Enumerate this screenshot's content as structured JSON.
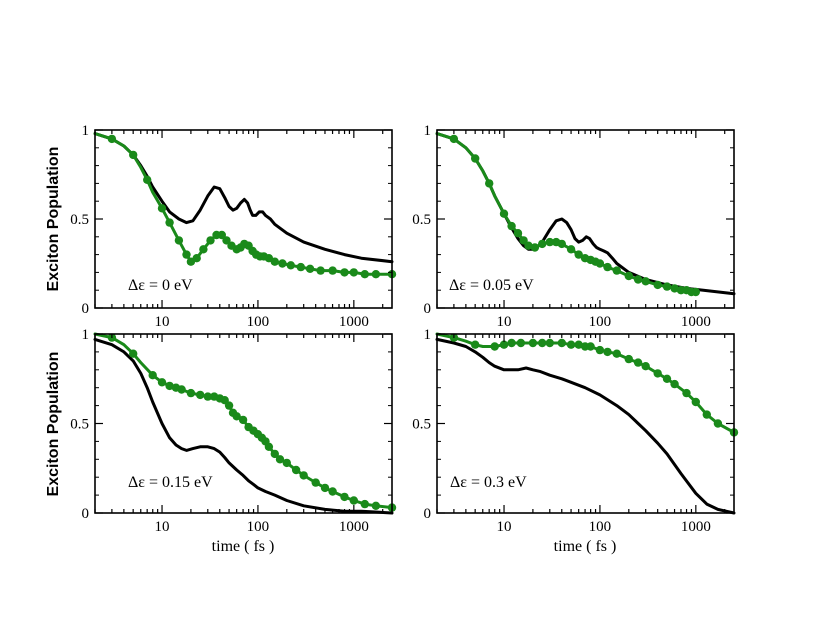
{
  "colors": {
    "sim": "#000000",
    "fit": "#1a8a1a",
    "frame": "#000000",
    "background": "#ffffff"
  },
  "chart_data": [
    {
      "type": "line",
      "xscale": "log",
      "xlim": [
        2,
        2500
      ],
      "ylim": [
        0,
        1
      ],
      "xticks": [
        10,
        100,
        1000
      ],
      "xtick_labels": [
        "10",
        "100",
        "1000"
      ],
      "yticks": [
        0,
        0.5,
        1
      ],
      "ytick_labels": [
        "0",
        "0.5",
        "1"
      ],
      "xlabel": "",
      "ylabel": "Exciton Population",
      "annotation": "Δε = 0 eV",
      "series": [
        {
          "name": "black",
          "color": "#000000",
          "markers": false,
          "x": [
            2,
            3,
            4,
            5,
            6,
            7,
            8,
            10,
            12,
            15,
            18,
            21,
            25,
            30,
            35,
            40,
            45,
            50,
            55,
            60,
            66,
            72,
            78,
            83,
            88,
            95,
            103,
            112,
            120,
            135,
            150,
            200,
            300,
            500,
            800,
            1200,
            2500
          ],
          "y": [
            0.98,
            0.95,
            0.91,
            0.86,
            0.8,
            0.74,
            0.68,
            0.6,
            0.54,
            0.5,
            0.48,
            0.49,
            0.55,
            0.63,
            0.68,
            0.67,
            0.62,
            0.57,
            0.55,
            0.56,
            0.59,
            0.61,
            0.59,
            0.55,
            0.52,
            0.52,
            0.54,
            0.54,
            0.52,
            0.5,
            0.47,
            0.42,
            0.37,
            0.33,
            0.3,
            0.28,
            0.26
          ]
        },
        {
          "name": "green",
          "color": "#1a8a1a",
          "markers": true,
          "x": [
            2,
            3,
            4,
            5,
            6,
            7,
            8,
            10,
            12,
            15,
            18,
            20,
            23,
            27,
            32,
            37,
            42,
            47,
            53,
            60,
            66,
            72,
            80,
            88,
            96,
            105,
            115,
            130,
            150,
            180,
            220,
            280,
            350,
            450,
            600,
            800,
            1000,
            1300,
            1700,
            2500
          ],
          "y": [
            0.98,
            0.95,
            0.91,
            0.86,
            0.79,
            0.72,
            0.65,
            0.56,
            0.48,
            0.38,
            0.3,
            0.26,
            0.28,
            0.33,
            0.38,
            0.41,
            0.41,
            0.38,
            0.35,
            0.33,
            0.34,
            0.36,
            0.35,
            0.32,
            0.3,
            0.29,
            0.29,
            0.28,
            0.26,
            0.25,
            0.24,
            0.23,
            0.22,
            0.21,
            0.21,
            0.2,
            0.2,
            0.19,
            0.19,
            0.19
          ]
        }
      ]
    },
    {
      "type": "line",
      "xscale": "log",
      "xlim": [
        2,
        2500
      ],
      "ylim": [
        0,
        1
      ],
      "xticks": [
        10,
        100,
        1000
      ],
      "xtick_labels": [
        "10",
        "100",
        "1000"
      ],
      "yticks": [
        0,
        0.5,
        1
      ],
      "ytick_labels": [
        "0",
        "0.5",
        "1"
      ],
      "xlabel": "",
      "ylabel": "",
      "annotation": "Δε = 0.05 eV",
      "series": [
        {
          "name": "black",
          "color": "#000000",
          "markers": false,
          "x": [
            2,
            3,
            4,
            5,
            6,
            7,
            8,
            10,
            12,
            14,
            16,
            18,
            21,
            25,
            30,
            35,
            40,
            45,
            50,
            55,
            60,
            66,
            72,
            78,
            85,
            92,
            100,
            110,
            120,
            135,
            150,
            200,
            300,
            500,
            800,
            1200,
            2500
          ],
          "y": [
            0.98,
            0.95,
            0.9,
            0.84,
            0.77,
            0.7,
            0.63,
            0.53,
            0.45,
            0.39,
            0.35,
            0.33,
            0.33,
            0.37,
            0.44,
            0.49,
            0.5,
            0.48,
            0.44,
            0.39,
            0.37,
            0.38,
            0.4,
            0.39,
            0.36,
            0.34,
            0.33,
            0.32,
            0.31,
            0.28,
            0.25,
            0.2,
            0.16,
            0.13,
            0.11,
            0.1,
            0.08
          ]
        },
        {
          "name": "green",
          "color": "#1a8a1a",
          "markers": true,
          "x": [
            2,
            3,
            4,
            5,
            6,
            7,
            8,
            10,
            12,
            14,
            16,
            18,
            21,
            25,
            30,
            35,
            40,
            50,
            60,
            70,
            80,
            90,
            100,
            120,
            150,
            200,
            250,
            300,
            400,
            500,
            600,
            700,
            800,
            900,
            1000
          ],
          "y": [
            0.98,
            0.95,
            0.9,
            0.84,
            0.77,
            0.7,
            0.63,
            0.53,
            0.46,
            0.42,
            0.38,
            0.35,
            0.34,
            0.36,
            0.37,
            0.37,
            0.36,
            0.33,
            0.3,
            0.28,
            0.27,
            0.26,
            0.25,
            0.23,
            0.21,
            0.18,
            0.16,
            0.15,
            0.13,
            0.12,
            0.11,
            0.1,
            0.1,
            0.09,
            0.09
          ]
        }
      ]
    },
    {
      "type": "line",
      "xscale": "log",
      "xlim": [
        2,
        2500
      ],
      "ylim": [
        0,
        1
      ],
      "xticks": [
        10,
        100,
        1000
      ],
      "xtick_labels": [
        "10",
        "100",
        "1000"
      ],
      "yticks": [
        0,
        0.5,
        1
      ],
      "ytick_labels": [
        "0",
        "0.5",
        "1"
      ],
      "xlabel": "time ( fs )",
      "ylabel": "Exciton Population",
      "annotation": "Δε = 0.15 eV",
      "series": [
        {
          "name": "black",
          "color": "#000000",
          "markers": false,
          "x": [
            2,
            3,
            4,
            5,
            6,
            7,
            8,
            10,
            12,
            14,
            16,
            18,
            21,
            25,
            30,
            35,
            40,
            45,
            50,
            60,
            70,
            80,
            90,
            100,
            120,
            150,
            200,
            300,
            500,
            800,
            1200,
            2500
          ],
          "y": [
            0.97,
            0.94,
            0.9,
            0.85,
            0.78,
            0.7,
            0.62,
            0.5,
            0.42,
            0.38,
            0.36,
            0.35,
            0.36,
            0.37,
            0.37,
            0.36,
            0.34,
            0.31,
            0.28,
            0.24,
            0.21,
            0.18,
            0.16,
            0.14,
            0.12,
            0.1,
            0.07,
            0.04,
            0.02,
            0.01,
            0.01,
            0.0
          ]
        },
        {
          "name": "green",
          "color": "#1a8a1a",
          "markers": true,
          "x": [
            2,
            3,
            4,
            5,
            6,
            8,
            10,
            12,
            14,
            16,
            20,
            25,
            30,
            35,
            40,
            45,
            50,
            55,
            60,
            70,
            80,
            90,
            100,
            110,
            120,
            130,
            150,
            170,
            200,
            250,
            300,
            400,
            500,
            600,
            800,
            1000,
            1300,
            1700,
            2500
          ],
          "y": [
            1.0,
            0.98,
            0.94,
            0.89,
            0.84,
            0.77,
            0.73,
            0.71,
            0.7,
            0.69,
            0.67,
            0.66,
            0.65,
            0.65,
            0.64,
            0.63,
            0.6,
            0.56,
            0.54,
            0.52,
            0.48,
            0.46,
            0.44,
            0.42,
            0.4,
            0.37,
            0.33,
            0.3,
            0.28,
            0.24,
            0.21,
            0.17,
            0.14,
            0.12,
            0.09,
            0.07,
            0.05,
            0.04,
            0.03
          ]
        }
      ]
    },
    {
      "type": "line",
      "xscale": "log",
      "xlim": [
        2,
        2500
      ],
      "ylim": [
        0,
        1
      ],
      "xticks": [
        10,
        100,
        1000
      ],
      "xtick_labels": [
        "10",
        "100",
        "1000"
      ],
      "yticks": [
        0,
        0.5,
        1
      ],
      "ytick_labels": [
        "0",
        "0.5",
        "1"
      ],
      "xlabel": "time ( fs )",
      "ylabel": "",
      "annotation": "Δε = 0.3 eV",
      "series": [
        {
          "name": "black",
          "color": "#000000",
          "markers": false,
          "x": [
            2,
            3,
            4,
            5,
            6,
            7,
            8,
            10,
            12,
            14,
            17,
            20,
            24,
            30,
            40,
            50,
            70,
            100,
            150,
            200,
            300,
            400,
            500,
            700,
            1000,
            1300,
            1700,
            2500
          ],
          "y": [
            0.97,
            0.95,
            0.93,
            0.9,
            0.87,
            0.84,
            0.82,
            0.8,
            0.8,
            0.8,
            0.81,
            0.8,
            0.79,
            0.77,
            0.75,
            0.73,
            0.7,
            0.66,
            0.6,
            0.55,
            0.46,
            0.39,
            0.33,
            0.22,
            0.11,
            0.05,
            0.02,
            0.0
          ]
        },
        {
          "name": "green",
          "color": "#1a8a1a",
          "markers": true,
          "x": [
            2,
            3,
            4,
            5,
            6,
            8,
            10,
            12,
            15,
            20,
            25,
            30,
            40,
            50,
            60,
            70,
            80,
            100,
            120,
            150,
            200,
            250,
            300,
            400,
            500,
            600,
            800,
            1000,
            1300,
            1700,
            2500
          ],
          "y": [
            1.0,
            0.98,
            0.96,
            0.94,
            0.93,
            0.93,
            0.94,
            0.95,
            0.95,
            0.95,
            0.95,
            0.95,
            0.95,
            0.94,
            0.94,
            0.93,
            0.93,
            0.91,
            0.9,
            0.89,
            0.86,
            0.84,
            0.82,
            0.78,
            0.75,
            0.72,
            0.67,
            0.62,
            0.55,
            0.5,
            0.45
          ]
        }
      ]
    }
  ]
}
